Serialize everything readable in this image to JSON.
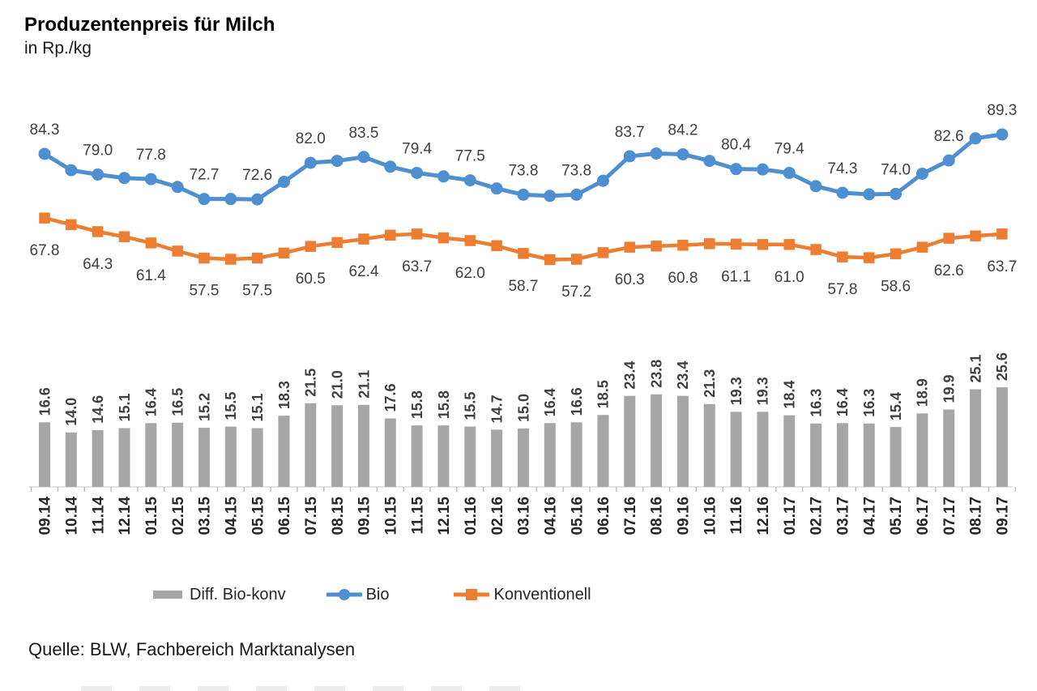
{
  "header": {
    "title": "Produzentenpreis für Milch",
    "subtitle": "in Rp./kg"
  },
  "source": "Quelle: BLW, Fachbereich Marktanalysen",
  "legend": [
    {
      "label": "Diff. Bio-konv",
      "type": "bar-swatch",
      "color": "#A6A6A6"
    },
    {
      "label": "Bio",
      "type": "line-circle-swatch",
      "color": "#4E8FD2"
    },
    {
      "label": "Konventionell",
      "type": "line-square-swatch",
      "color": "#ED7D31"
    }
  ],
  "colors": {
    "bars": "#A6A6A6",
    "bio_line": "#4E8FD2",
    "konv_line": "#ED7D31",
    "axis_line": "#D9D9D9",
    "tick": "#BFBFBF",
    "value_label": "#3F3F3F",
    "axis_label": "#262626"
  },
  "chart_data": {
    "type": "bar+line combo",
    "title": "Produzentenpreis für Milch",
    "ylabel": "in Rp./kg",
    "grid": false,
    "y_axis_visible": false,
    "value_label_every_n_points_lines": 2,
    "value_label_every_bar": true,
    "x_tick_label_rotation_deg": 90,
    "categories": [
      "09.14",
      "10.14",
      "11.14",
      "12.14",
      "01.15",
      "02.15",
      "03.15",
      "04.15",
      "05.15",
      "06.15",
      "07.15",
      "08.15",
      "09.15",
      "10.15",
      "11.15",
      "12.15",
      "01.16",
      "02.16",
      "03.16",
      "04.16",
      "05.16",
      "06.16",
      "07.16",
      "08.16",
      "09.16",
      "10.16",
      "11.16",
      "12.16",
      "01.17",
      "02.17",
      "03.17",
      "04.17",
      "05.17",
      "06.17",
      "07.17",
      "08.17",
      "09.17"
    ],
    "series": [
      {
        "name": "Diff. Bio-konv",
        "type": "bar",
        "color": "#A6A6A6",
        "values": [
          16.6,
          14.0,
          14.6,
          15.1,
          16.4,
          16.5,
          15.2,
          15.5,
          15.1,
          18.3,
          21.5,
          21.0,
          21.1,
          17.6,
          15.8,
          15.8,
          15.5,
          14.7,
          15.0,
          16.4,
          16.6,
          18.5,
          23.4,
          23.8,
          23.4,
          21.3,
          19.3,
          19.3,
          18.4,
          16.3,
          16.4,
          16.3,
          15.4,
          18.9,
          19.9,
          25.1,
          25.6
        ]
      },
      {
        "name": "Bio",
        "type": "line",
        "marker": "circle",
        "color": "#4E8FD2",
        "values": [
          84.3,
          80.1,
          79.0,
          78.1,
          77.8,
          75.8,
          72.7,
          72.7,
          72.6,
          77.1,
          82.0,
          82.5,
          83.5,
          81.0,
          79.4,
          78.5,
          77.5,
          75.4,
          73.8,
          73.5,
          73.8,
          77.4,
          83.7,
          84.4,
          84.2,
          82.5,
          80.4,
          80.3,
          79.4,
          76.0,
          74.3,
          73.9,
          74.0,
          79.2,
          82.6,
          88.3,
          89.3
        ],
        "shown_labels": [
          84.3,
          79.0,
          77.8,
          72.7,
          72.6,
          82.0,
          83.5,
          79.4,
          77.5,
          73.8,
          73.8,
          83.7,
          84.2,
          80.4,
          79.4,
          74.3,
          74.0,
          82.6,
          89.3
        ]
      },
      {
        "name": "Konventionell",
        "type": "line",
        "marker": "square",
        "color": "#ED7D31",
        "values": [
          67.8,
          66.1,
          64.3,
          63.0,
          61.4,
          59.3,
          57.5,
          57.2,
          57.5,
          58.8,
          60.5,
          61.5,
          62.4,
          63.4,
          63.7,
          62.7,
          62.0,
          60.7,
          58.7,
          57.1,
          57.2,
          58.9,
          60.3,
          60.6,
          60.8,
          61.2,
          61.1,
          61.0,
          61.0,
          59.7,
          57.8,
          57.6,
          58.6,
          60.3,
          62.6,
          63.2,
          63.7
        ],
        "shown_labels": [
          67.8,
          64.3,
          61.4,
          57.5,
          57.5,
          60.5,
          62.4,
          63.7,
          62.0,
          58.7,
          57.2,
          60.3,
          60.8,
          61.1,
          61.0,
          57.8,
          58.6,
          62.6,
          63.7
        ]
      }
    ]
  }
}
